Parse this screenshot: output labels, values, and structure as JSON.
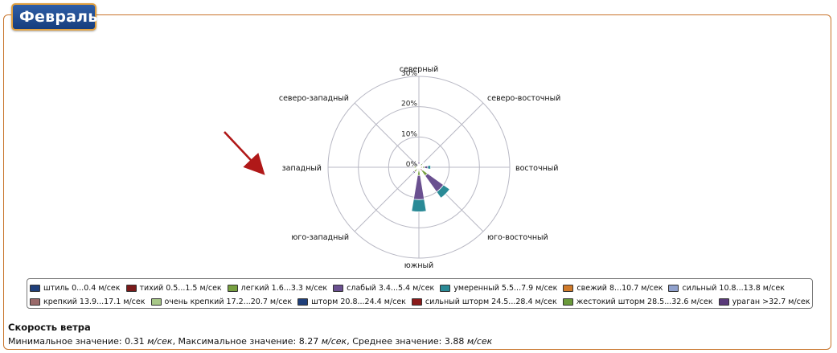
{
  "header": {
    "month": "Февраль"
  },
  "chart_data": {
    "type": "windrose",
    "directions": [
      "северный",
      "северо-восточный",
      "восточный",
      "юго-восточный",
      "южный",
      "юго-западный",
      "западный",
      "северо-западный"
    ],
    "radial_ticks": [
      "0%",
      "10%",
      "20%",
      "30%"
    ],
    "radial_max": 30,
    "series": [
      {
        "name": "штиль 0...0.4 м/сек",
        "color": "#1f3f7a",
        "values": [
          0,
          0,
          0,
          0,
          0,
          0,
          0,
          0
        ]
      },
      {
        "name": "тихий 0.5...1.5 м/сек",
        "color": "#7a1a1a",
        "values": [
          0,
          0.8,
          1.2,
          1.5,
          1.2,
          0.8,
          0.8,
          0
        ]
      },
      {
        "name": "легкий 1.6...3.3 м/сек",
        "color": "#77a040",
        "values": [
          1.0,
          0.8,
          0.7,
          2.0,
          1.5,
          1.2,
          0.8,
          0.3
        ]
      },
      {
        "name": "слабый 3.4...5.4 м/сек",
        "color": "#6a5090",
        "values": [
          0.8,
          0.3,
          1.0,
          6.5,
          8.0,
          0.5,
          0.3,
          0.3
        ]
      },
      {
        "name": "умеренный 5.5...7.9 м/сек",
        "color": "#2a8a96",
        "values": [
          0,
          0.2,
          1.0,
          2.5,
          4.0,
          0.3,
          0,
          0
        ]
      },
      {
        "name": "свежий 8...10.7 м/сек",
        "color": "#d07a2a",
        "values": [
          0,
          0,
          0,
          0,
          0,
          0,
          0,
          0
        ]
      },
      {
        "name": "сильный 10.8...13.8 м/сек",
        "color": "#8fa0cc",
        "values": [
          0,
          0,
          0,
          0,
          0,
          0,
          0,
          0
        ]
      },
      {
        "name": "крепкий 13.9...17.1 м/сек",
        "color": "#9a6a6a",
        "values": [
          0,
          0,
          0,
          0,
          0,
          0,
          0,
          0
        ]
      },
      {
        "name": "очень крепкий 17.2...20.7 м/сек",
        "color": "#a8c888",
        "values": [
          0,
          0,
          0,
          0,
          0,
          0,
          0,
          0
        ]
      },
      {
        "name": "шторм 20.8...24.4 м/сек",
        "color": "#1f3f7a",
        "values": [
          0,
          0,
          0,
          0,
          0,
          0,
          0,
          0
        ]
      },
      {
        "name": "сильный шторм 24.5...28.4 м/сек",
        "color": "#8a1a1a",
        "values": [
          0,
          0,
          0,
          0,
          0,
          0,
          0,
          0
        ]
      },
      {
        "name": "жестокий шторм 28.5...32.6 м/сек",
        "color": "#6a9a3a",
        "values": [
          0,
          0,
          0,
          0,
          0,
          0,
          0,
          0
        ]
      },
      {
        "name": "ураган >32.7 м/сек",
        "color": "#5a3a7a",
        "values": [
          0,
          0,
          0,
          0,
          0,
          0,
          0,
          0
        ]
      }
    ]
  },
  "legend_rows": [
    [
      0,
      1,
      2,
      3,
      4,
      5,
      6
    ],
    [
      7,
      8,
      9,
      10,
      11,
      12
    ]
  ],
  "stats": {
    "title": "Скорость ветра",
    "min_label": "Минимальное значение: ",
    "min_value": "0.31",
    "max_label": ", Максимальное значение: ",
    "max_value": "8.27",
    "avg_label": ", Среднее значение: ",
    "avg_value": "3.88",
    "unit": "м/сек"
  }
}
